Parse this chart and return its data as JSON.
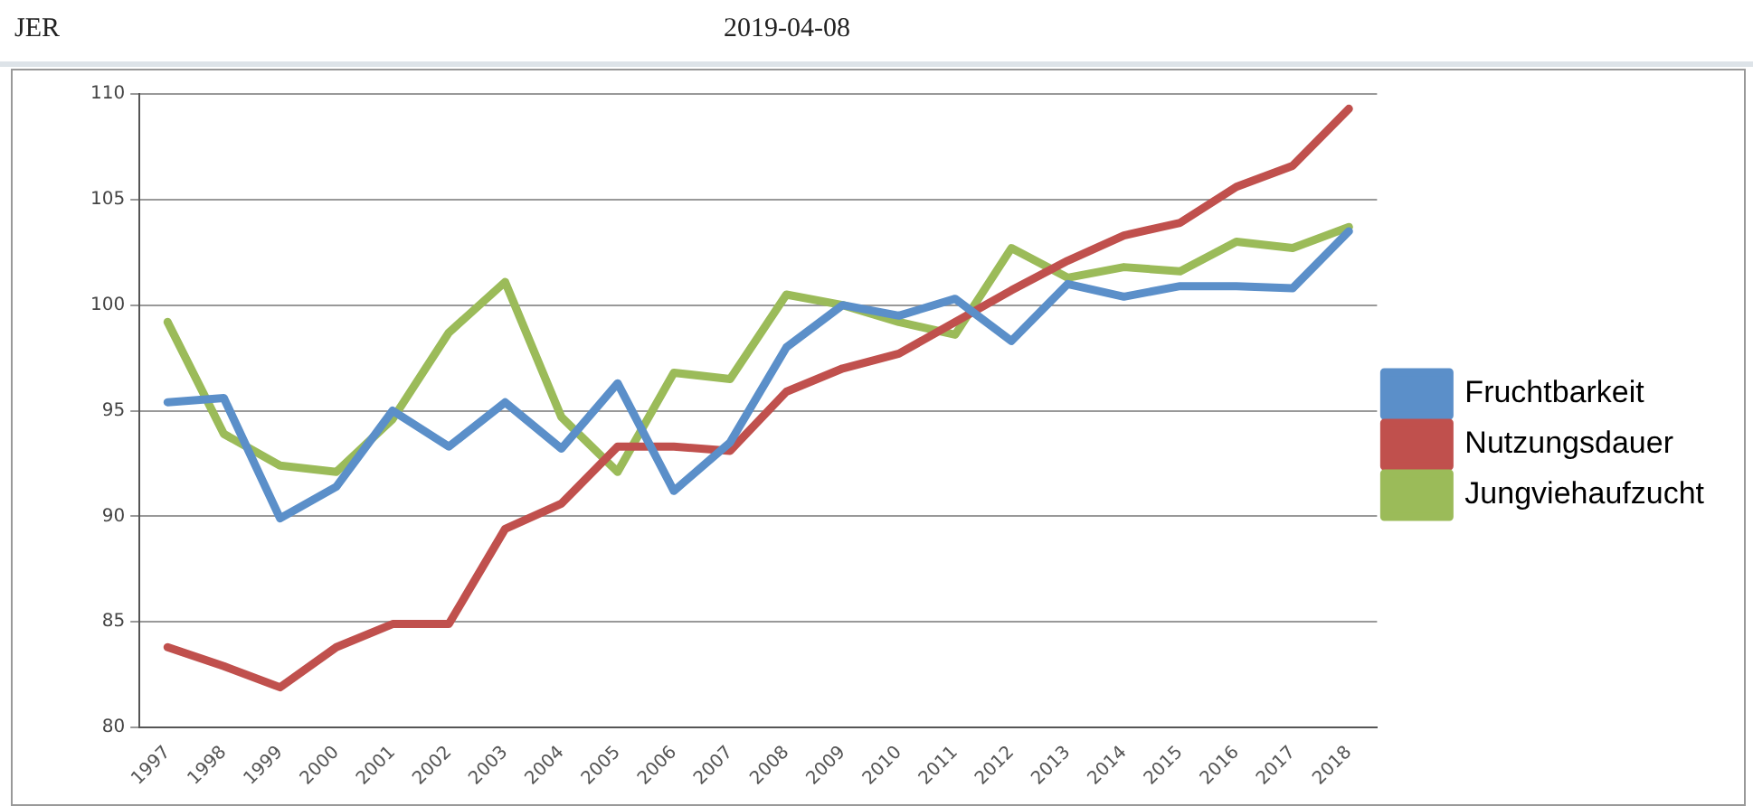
{
  "chart_data": {
    "type": "line",
    "title": "JER",
    "subtitle": "2019-04-08",
    "categories": [
      "1997",
      "1998",
      "1999",
      "2000",
      "2001",
      "2002",
      "2003",
      "2004",
      "2005",
      "2006",
      "2007",
      "2008",
      "2009",
      "2010",
      "2011",
      "2012",
      "2013",
      "2014",
      "2015",
      "2016",
      "2017",
      "2018"
    ],
    "series": [
      {
        "name": "Fruchtbarkeit",
        "color": "#5b8fc9",
        "values": [
          95.4,
          95.6,
          89.9,
          91.4,
          95.0,
          93.3,
          95.4,
          93.2,
          96.3,
          91.2,
          93.5,
          98.0,
          100.0,
          99.5,
          100.3,
          98.3,
          101.0,
          100.4,
          100.9,
          100.9,
          100.8,
          103.5
        ]
      },
      {
        "name": "Nutzungsdauer",
        "color": "#c0504d",
        "values": [
          83.8,
          82.9,
          81.9,
          83.8,
          84.9,
          84.9,
          89.4,
          90.6,
          93.3,
          93.3,
          93.1,
          95.9,
          97.0,
          97.7,
          99.2,
          100.7,
          102.1,
          103.3,
          103.9,
          105.6,
          106.6,
          109.3
        ]
      },
      {
        "name": "Jungviehaufzucht",
        "color": "#9bbb59",
        "values": [
          99.2,
          93.9,
          92.4,
          92.1,
          94.6,
          98.7,
          101.1,
          94.7,
          92.1,
          96.8,
          96.5,
          100.5,
          100.0,
          99.2,
          98.6,
          102.7,
          101.3,
          101.8,
          101.6,
          103.0,
          102.7,
          103.7
        ]
      }
    ],
    "ylim": [
      80,
      110
    ],
    "yticks": [
      80,
      85,
      90,
      95,
      100,
      105,
      110
    ],
    "grid": "y",
    "legend": "right",
    "marker": "none",
    "line_style": "solid"
  }
}
